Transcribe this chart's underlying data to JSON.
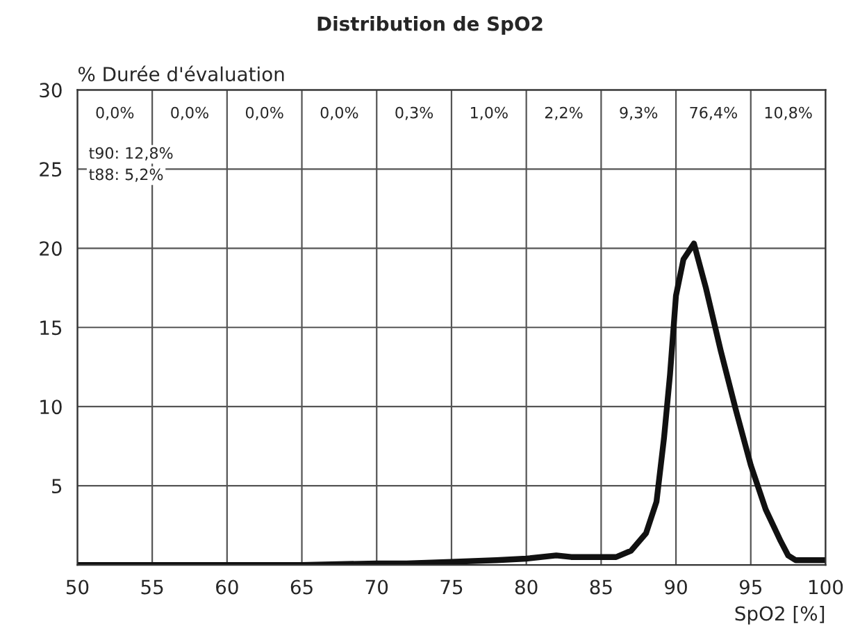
{
  "chart_data": {
    "type": "line",
    "title": "Distribution de SpO2",
    "xlabel": "SpO2 [%]",
    "ylabel": "% Durée d'évaluation",
    "x": [
      50,
      55,
      60,
      65,
      70,
      72,
      75,
      78,
      80,
      82,
      83,
      84,
      86,
      87,
      88,
      88.7,
      89.2,
      89.6,
      90,
      90.5,
      91.2,
      92,
      93,
      94,
      95,
      96,
      97,
      97.5,
      98,
      99,
      100
    ],
    "series": [
      {
        "color": "#111111",
        "values": [
          0,
          0,
          0,
          0,
          0.1,
          0.1,
          0.2,
          0.3,
          0.4,
          0.6,
          0.5,
          0.5,
          0.5,
          0.9,
          2,
          4,
          8,
          12,
          17,
          19.3,
          20.3,
          17.5,
          13.5,
          9.8,
          6.3,
          3.5,
          1.5,
          0.6,
          0.3,
          0.3,
          0.3
        ]
      }
    ],
    "xlim": [
      50,
      100
    ],
    "xticks": [
      50,
      55,
      60,
      65,
      70,
      75,
      80,
      85,
      90,
      95,
      100
    ],
    "ylim": [
      0,
      30
    ],
    "yticks": [
      {
        "value": 0,
        "label": null
      },
      5,
      10,
      15,
      20,
      25,
      30
    ],
    "grid": true,
    "legend": false,
    "line_style": "solid",
    "marker": "none",
    "annotations": [
      "0,0%",
      "0,0%",
      "0,0%",
      "0,0%",
      "0,3%",
      "1,0%",
      "2,2%",
      "9,3%",
      "76,4%",
      "10,8%",
      "t90: 12,8%",
      "t88: 5,2%"
    ]
  }
}
